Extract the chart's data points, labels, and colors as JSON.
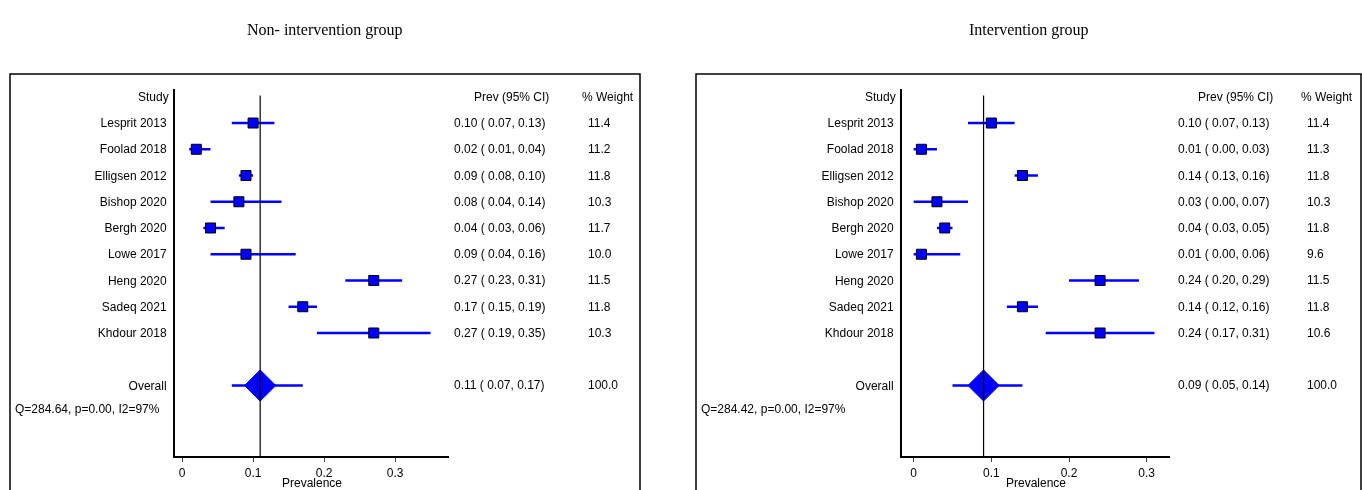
{
  "chart_data": [
    {
      "type": "scatter",
      "orientation": "horizontal",
      "title": "Non- intervention group",
      "xlabel": "Prevalence",
      "ylabel": "Study",
      "categories": [
        "Lesprit 2013",
        "Foolad 2018",
        "Elligsen 2012",
        "Bishop 2020",
        "Bergh 2020",
        "Lowe 2017",
        "Heng 2020",
        "Sadeq 2021",
        "Khdour 2018",
        null,
        "Overall"
      ],
      "xlim": [
        -0.01,
        0.376
      ],
      "xticks": [
        0,
        0.1,
        0.2,
        0.3
      ],
      "series": [
        {
          "color": "#0000ff",
          "marker": "square",
          "values": [
            0.1,
            0.02,
            0.09,
            0.08,
            0.04,
            0.09,
            0.27,
            0.17,
            0.27,
            null,
            null
          ],
          "errors": [
            [
              0.07,
              0.13
            ],
            [
              0.01,
              0.04
            ],
            [
              0.08,
              0.1
            ],
            [
              0.04,
              0.14
            ],
            [
              0.03,
              0.06
            ],
            [
              0.04,
              0.16
            ],
            [
              0.23,
              0.31
            ],
            [
              0.15,
              0.19
            ],
            [
              0.19,
              0.35
            ],
            null,
            null
          ],
          "value_labels": [
            "0.10 ( 0.07, 0.13)",
            "0.02 ( 0.01, 0.04)",
            "0.09 ( 0.08, 0.10)",
            "0.08 ( 0.04, 0.14)",
            "0.04 ( 0.03, 0.06)",
            "0.09 ( 0.04, 0.16)",
            "0.27 ( 0.23, 0.31)",
            "0.17 ( 0.15, 0.19)",
            "0.27 ( 0.19, 0.35)",
            null,
            null
          ]
        },
        {
          "color": "#0000ff",
          "marker": "diamond",
          "values": [
            null,
            null,
            null,
            null,
            null,
            null,
            null,
            null,
            null,
            null,
            0.11
          ],
          "errors": [
            null,
            null,
            null,
            null,
            null,
            null,
            null,
            null,
            null,
            null,
            [
              0.07,
              0.17
            ]
          ]
        }
      ],
      "ref_lines": [
        {
          "axis": "x",
          "value": 0.11,
          "color": "#000000"
        }
      ],
      "annotations": [
        "Prev (95% CI)",
        "% Weight",
        "11.4",
        "11.2",
        "11.8",
        "10.3",
        "11.7",
        "10.0",
        "11.5",
        "11.8",
        "10.3",
        "100.0",
        "0.11 ( 0.07, 0.17)",
        "Q=284.64, p=0.00, I2=97%"
      ]
    },
    {
      "type": "scatter",
      "orientation": "horizontal",
      "title": "Intervention group",
      "xlabel": "Prevalence",
      "ylabel": "Study",
      "categories": [
        "Lesprit 2013",
        "Foolad 2018",
        "Elligsen 2012",
        "Bishop 2020",
        "Bergh 2020",
        "Lowe 2017",
        "Heng 2020",
        "Sadeq 2021",
        "Khdour 2018",
        null,
        "Overall"
      ],
      "xlim": [
        -0.015,
        0.33
      ],
      "xticks": [
        0,
        0.1,
        0.2,
        0.3
      ],
      "series": [
        {
          "color": "#0000ff",
          "marker": "square",
          "values": [
            0.1,
            0.01,
            0.14,
            0.03,
            0.04,
            0.01,
            0.24,
            0.14,
            0.24,
            null,
            null
          ],
          "errors": [
            [
              0.07,
              0.13
            ],
            [
              0.0,
              0.03
            ],
            [
              0.13,
              0.16
            ],
            [
              0.0,
              0.07
            ],
            [
              0.03,
              0.05
            ],
            [
              0.0,
              0.06
            ],
            [
              0.2,
              0.29
            ],
            [
              0.12,
              0.16
            ],
            [
              0.17,
              0.31
            ],
            null,
            null
          ],
          "value_labels": [
            "0.10 ( 0.07, 0.13)",
            "0.01 ( 0.00, 0.03)",
            "0.14 ( 0.13, 0.16)",
            "0.03 ( 0.00, 0.07)",
            "0.04 ( 0.03, 0.05)",
            "0.01 ( 0.00, 0.06)",
            "0.24 ( 0.20, 0.29)",
            "0.14 ( 0.12, 0.16)",
            "0.24 ( 0.17, 0.31)",
            null,
            null
          ]
        },
        {
          "color": "#0000ff",
          "marker": "diamond",
          "values": [
            null,
            null,
            null,
            null,
            null,
            null,
            null,
            null,
            null,
            null,
            0.09
          ],
          "errors": [
            null,
            null,
            null,
            null,
            null,
            null,
            null,
            null,
            null,
            null,
            [
              0.05,
              0.14
            ]
          ]
        }
      ],
      "ref_lines": [
        {
          "axis": "x",
          "value": 0.09,
          "color": "#000000"
        }
      ],
      "annotations": [
        "Prev (95% CI)",
        "% Weight",
        "11.4",
        "11.3",
        "11.8",
        "10.3",
        "11.8",
        "9.6",
        "11.5",
        "11.8",
        "10.6",
        "100.0",
        "0.09 ( 0.05, 0.14)",
        "Q=284.42, p=0.00, I2=97%"
      ]
    }
  ]
}
